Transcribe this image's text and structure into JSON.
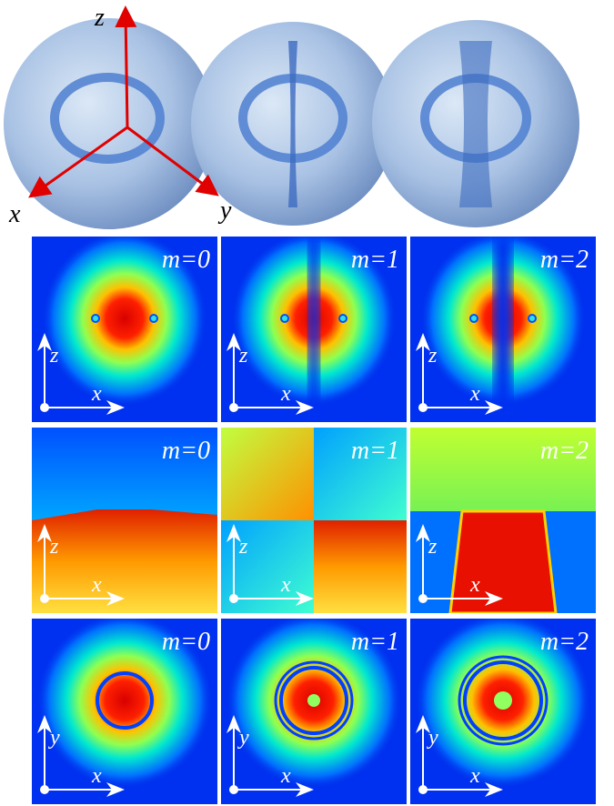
{
  "top": {
    "axes": {
      "z": "z",
      "x": "x",
      "y": "y"
    }
  },
  "grid": {
    "rows": [
      {
        "panels": [
          {
            "label": "m=0",
            "v_axis": "z",
            "h_axis": "x"
          },
          {
            "label": "m=1",
            "v_axis": "z",
            "h_axis": "x"
          },
          {
            "label": "m=2",
            "v_axis": "z",
            "h_axis": "x"
          }
        ]
      },
      {
        "panels": [
          {
            "label": "m=0",
            "v_axis": "z",
            "h_axis": "x"
          },
          {
            "label": "m=1",
            "v_axis": "z",
            "h_axis": "x"
          },
          {
            "label": "m=2",
            "v_axis": "z",
            "h_axis": "x"
          }
        ]
      },
      {
        "panels": [
          {
            "label": "m=0",
            "v_axis": "y",
            "h_axis": "x"
          },
          {
            "label": "m=1",
            "v_axis": "y",
            "h_axis": "x"
          },
          {
            "label": "m=2",
            "v_axis": "y",
            "h_axis": "x"
          }
        ]
      }
    ]
  }
}
